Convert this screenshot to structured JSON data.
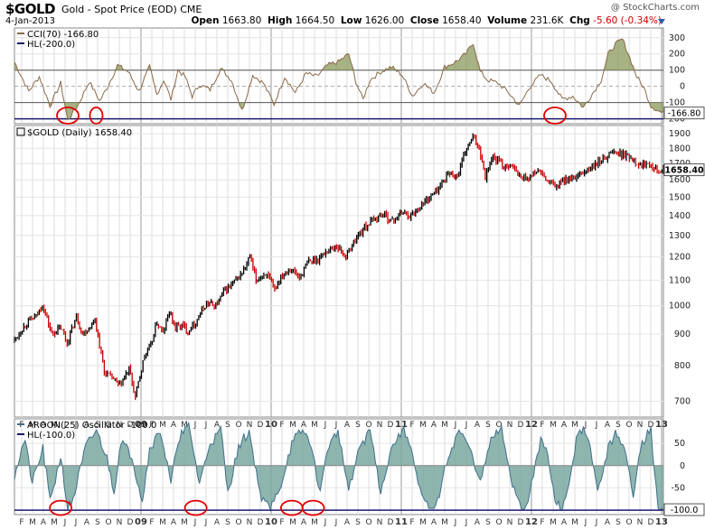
{
  "header": {
    "symbol": "$GOLD",
    "subtitle": "Gold - Spot Price (EOD)  CME",
    "date": "4-Jan-2013",
    "watermark": "@ StockCharts.com",
    "open_label": "Open",
    "open": "1663.80",
    "high_label": "High",
    "high": "1664.50",
    "low_label": "Low",
    "low": "1626.00",
    "close_label": "Close",
    "close": "1658.40",
    "volume_label": "Volume",
    "volume": "231.6K",
    "chg_label": "Chg",
    "chg": "-5.60 (-0.34%)"
  },
  "colors": {
    "up": "#000000",
    "down": "#cc0000",
    "fill": "#8a9a5b",
    "aroon_fill": "#7aa8a0",
    "line": "#8b6a4a",
    "hl": "#1a1a6e",
    "circle": "#e00000"
  },
  "x_axis": {
    "labels": [
      "F",
      "M",
      "A",
      "M",
      "J",
      "J",
      "A",
      "S",
      "O",
      "N",
      "D",
      "09",
      "F",
      "M",
      "A",
      "M",
      "J",
      "J",
      "A",
      "S",
      "O",
      "N",
      "D",
      "10",
      "F",
      "M",
      "A",
      "M",
      "J",
      "J",
      "A",
      "S",
      "O",
      "N",
      "D",
      "11",
      "F",
      "M",
      "A",
      "M",
      "J",
      "J",
      "A",
      "S",
      "O",
      "N",
      "D",
      "12",
      "F",
      "M",
      "A",
      "M",
      "J",
      "J",
      "A",
      "S",
      "O",
      "N",
      "D",
      "13"
    ],
    "bold": [
      "09",
      "10",
      "11",
      "12",
      "13"
    ]
  },
  "chart_data": [
    {
      "type": "line",
      "panel": "cci",
      "legend": [
        "CCI(70) -166.80",
        "HL(-200.0)"
      ],
      "ylim": [
        -230,
        360
      ],
      "yticks": [
        300,
        200,
        100,
        0,
        -100,
        -200
      ],
      "hlines": [
        100,
        -100
      ],
      "hl_level": -200,
      "last_value_label": "-166.80",
      "anchors": [
        [
          0,
          150
        ],
        [
          8,
          -30
        ],
        [
          14,
          60
        ],
        [
          20,
          -120
        ],
        [
          26,
          20
        ],
        [
          30,
          -210
        ],
        [
          36,
          -110
        ],
        [
          42,
          30
        ],
        [
          48,
          -90
        ],
        [
          52,
          -10
        ],
        [
          58,
          130
        ],
        [
          64,
          90
        ],
        [
          70,
          -30
        ],
        [
          76,
          120
        ],
        [
          80,
          -50
        ],
        [
          84,
          40
        ],
        [
          88,
          -80
        ],
        [
          92,
          100
        ],
        [
          96,
          60
        ],
        [
          100,
          -60
        ],
        [
          104,
          10
        ],
        [
          110,
          -20
        ],
        [
          116,
          110
        ],
        [
          122,
          40
        ],
        [
          128,
          -150
        ],
        [
          134,
          70
        ],
        [
          140,
          20
        ],
        [
          146,
          -110
        ],
        [
          152,
          60
        ],
        [
          158,
          -40
        ],
        [
          164,
          80
        ],
        [
          170,
          60
        ],
        [
          176,
          130
        ],
        [
          182,
          150
        ],
        [
          188,
          200
        ],
        [
          192,
          30
        ],
        [
          196,
          -80
        ],
        [
          200,
          40
        ],
        [
          206,
          90
        ],
        [
          212,
          120
        ],
        [
          218,
          70
        ],
        [
          224,
          -60
        ],
        [
          230,
          20
        ],
        [
          236,
          -40
        ],
        [
          242,
          120
        ],
        [
          248,
          150
        ],
        [
          254,
          200
        ],
        [
          258,
          270
        ],
        [
          262,
          90
        ],
        [
          266,
          40
        ],
        [
          272,
          20
        ],
        [
          278,
          -40
        ],
        [
          284,
          -120
        ],
        [
          290,
          0
        ],
        [
          296,
          70
        ],
        [
          302,
          30
        ],
        [
          308,
          -80
        ],
        [
          314,
          -60
        ],
        [
          320,
          -130
        ],
        [
          326,
          -30
        ],
        [
          330,
          40
        ],
        [
          334,
          200
        ],
        [
          338,
          260
        ],
        [
          342,
          290
        ],
        [
          346,
          180
        ],
        [
          350,
          60
        ],
        [
          354,
          -10
        ],
        [
          358,
          -120
        ],
        [
          362,
          -150
        ],
        [
          365,
          -167
        ]
      ],
      "circles": [
        [
          30,
          -180
        ],
        [
          46,
          -180
        ],
        [
          304,
          -180
        ]
      ]
    },
    {
      "type": "line",
      "panel": "price",
      "title": "$GOLD (Daily) 1658.40",
      "ylim": [
        660,
        1960
      ],
      "yticks": [
        700,
        800,
        900,
        1000,
        1100,
        1200,
        1300,
        1400,
        1500,
        1600,
        1700,
        1800,
        1900
      ],
      "last_value_label": "1658.40",
      "anchors": [
        [
          0,
          880
        ],
        [
          8,
          940
        ],
        [
          14,
          960
        ],
        [
          18,
          1005
        ],
        [
          24,
          900
        ],
        [
          30,
          920
        ],
        [
          34,
          870
        ],
        [
          40,
          960
        ],
        [
          44,
          900
        ],
        [
          48,
          920
        ],
        [
          52,
          950
        ],
        [
          58,
          780
        ],
        [
          64,
          760
        ],
        [
          68,
          740
        ],
        [
          74,
          790
        ],
        [
          78,
          710
        ],
        [
          84,
          830
        ],
        [
          88,
          860
        ],
        [
          92,
          940
        ],
        [
          96,
          900
        ],
        [
          100,
          980
        ],
        [
          104,
          920
        ],
        [
          108,
          930
        ],
        [
          112,
          910
        ],
        [
          118,
          950
        ],
        [
          124,
          1010
        ],
        [
          130,
          1000
        ],
        [
          136,
          1060
        ],
        [
          142,
          1090
        ],
        [
          148,
          1140
        ],
        [
          152,
          1200
        ],
        [
          156,
          1100
        ],
        [
          162,
          1130
        ],
        [
          168,
          1060
        ],
        [
          172,
          1120
        ],
        [
          178,
          1150
        ],
        [
          184,
          1110
        ],
        [
          190,
          1180
        ],
        [
          196,
          1190
        ],
        [
          202,
          1230
        ],
        [
          208,
          1250
        ],
        [
          214,
          1200
        ],
        [
          220,
          1280
        ],
        [
          226,
          1340
        ],
        [
          232,
          1380
        ],
        [
          238,
          1410
        ],
        [
          244,
          1370
        ],
        [
          250,
          1420
        ],
        [
          256,
          1400
        ],
        [
          262,
          1450
        ],
        [
          268,
          1500
        ],
        [
          274,
          1550
        ],
        [
          280,
          1640
        ],
        [
          286,
          1620
        ],
        [
          292,
          1800
        ],
        [
          296,
          1870
        ],
        [
          300,
          1810
        ],
        [
          304,
          1620
        ],
        [
          308,
          1740
        ],
        [
          312,
          1720
        ],
        [
          316,
          1680
        ],
        [
          320,
          1700
        ],
        [
          326,
          1620
        ],
        [
          332,
          1610
        ],
        [
          338,
          1660
        ],
        [
          344,
          1590
        ],
        [
          350,
          1560
        ],
        [
          356,
          1610
        ],
        [
          362,
          1600
        ],
        [
          368,
          1650
        ],
        [
          374,
          1680
        ],
        [
          380,
          1730
        ],
        [
          386,
          1780
        ],
        [
          392,
          1760
        ],
        [
          398,
          1740
        ],
        [
          404,
          1690
        ],
        [
          410,
          1710
        ],
        [
          416,
          1660
        ],
        [
          420,
          1658
        ]
      ]
    },
    {
      "type": "area",
      "panel": "aroon",
      "legend": [
        "AROON(25) Oscillator -100.0",
        "HL(-100.0)"
      ],
      "ylim": [
        -110,
        105
      ],
      "yticks": [
        50,
        0,
        -50,
        -100
      ],
      "hl_level": -100,
      "last_value_label": "-100.0",
      "anchors": [
        [
          0,
          -20
        ],
        [
          6,
          60
        ],
        [
          10,
          -40
        ],
        [
          16,
          40
        ],
        [
          20,
          -80
        ],
        [
          26,
          20
        ],
        [
          30,
          -100
        ],
        [
          34,
          -60
        ],
        [
          40,
          40
        ],
        [
          46,
          80
        ],
        [
          52,
          20
        ],
        [
          56,
          -60
        ],
        [
          60,
          60
        ],
        [
          66,
          20
        ],
        [
          72,
          -80
        ],
        [
          76,
          40
        ],
        [
          82,
          80
        ],
        [
          88,
          -40
        ],
        [
          92,
          60
        ],
        [
          98,
          90
        ],
        [
          104,
          -40
        ],
        [
          110,
          50
        ],
        [
          116,
          80
        ],
        [
          120,
          -60
        ],
        [
          126,
          40
        ],
        [
          132,
          80
        ],
        [
          138,
          -60
        ],
        [
          144,
          -100
        ],
        [
          150,
          -40
        ],
        [
          156,
          50
        ],
        [
          162,
          80
        ],
        [
          166,
          60
        ],
        [
          172,
          -60
        ],
        [
          176,
          40
        ],
        [
          182,
          80
        ],
        [
          188,
          -60
        ],
        [
          194,
          40
        ],
        [
          200,
          80
        ],
        [
          206,
          -60
        ],
        [
          212,
          40
        ],
        [
          218,
          80
        ],
        [
          222,
          60
        ],
        [
          228,
          -60
        ],
        [
          234,
          -100
        ],
        [
          238,
          -80
        ],
        [
          244,
          20
        ],
        [
          250,
          80
        ],
        [
          256,
          40
        ],
        [
          262,
          -40
        ],
        [
          268,
          60
        ],
        [
          274,
          80
        ],
        [
          280,
          -40
        ],
        [
          286,
          -100
        ],
        [
          290,
          -60
        ],
        [
          296,
          60
        ],
        [
          300,
          20
        ],
        [
          304,
          -80
        ],
        [
          308,
          -100
        ],
        [
          312,
          -40
        ],
        [
          316,
          60
        ],
        [
          320,
          80
        ],
        [
          324,
          40
        ],
        [
          328,
          -60
        ],
        [
          334,
          40
        ],
        [
          338,
          80
        ],
        [
          344,
          20
        ],
        [
          348,
          -60
        ],
        [
          352,
          40
        ],
        [
          358,
          80
        ],
        [
          362,
          -100
        ],
        [
          365,
          -100
        ]
      ],
      "circles": [
        [
          26,
          -95
        ],
        [
          102,
          -95
        ],
        [
          156,
          -95
        ],
        [
          168,
          -95
        ]
      ]
    }
  ]
}
